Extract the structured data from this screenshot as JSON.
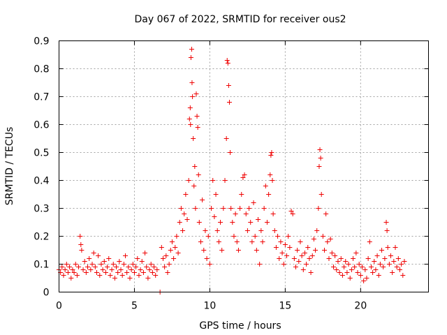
{
  "chart_data": {
    "type": "scatter",
    "title": "Day 067 of 2022, SRMTID for receiver ous2",
    "xlabel": "GPS time / hours",
    "ylabel": "SRMTID / TECUs",
    "xlim": [
      0,
      24.5
    ],
    "ylim": [
      0,
      0.9
    ],
    "xticks": [
      0,
      5,
      10,
      15,
      20
    ],
    "xtick_labels": [
      "0",
      "5",
      "10",
      "15",
      "20"
    ],
    "yticks": [
      0,
      0.1,
      0.2,
      0.3,
      0.4,
      0.5,
      0.6,
      0.7,
      0.8,
      0.9
    ],
    "ytick_labels": [
      "0",
      "0.1",
      "0.2",
      "0.3",
      "0.4",
      "0.5",
      "0.6",
      "0.7",
      "0.8",
      "0.9"
    ],
    "grid": true,
    "marker": "+",
    "color": "#ee0000",
    "series": [
      {
        "name": "ous2",
        "points": [
          [
            0.0,
            0.08
          ],
          [
            0.1,
            0.07
          ],
          [
            0.2,
            0.09
          ],
          [
            0.3,
            0.06
          ],
          [
            0.4,
            0.08
          ],
          [
            0.5,
            0.1
          ],
          [
            0.6,
            0.07
          ],
          [
            0.7,
            0.09
          ],
          [
            0.8,
            0.05
          ],
          [
            0.9,
            0.08
          ],
          [
            1.0,
            0.07
          ],
          [
            1.1,
            0.1
          ],
          [
            1.2,
            0.06
          ],
          [
            1.3,
            0.09
          ],
          [
            1.4,
            0.2
          ],
          [
            1.45,
            0.17
          ],
          [
            1.5,
            0.15
          ],
          [
            1.6,
            0.08
          ],
          [
            1.7,
            0.11
          ],
          [
            1.8,
            0.07
          ],
          [
            1.9,
            0.09
          ],
          [
            2.0,
            0.12
          ],
          [
            2.1,
            0.08
          ],
          [
            2.2,
            0.1
          ],
          [
            2.3,
            0.14
          ],
          [
            2.4,
            0.09
          ],
          [
            2.5,
            0.07
          ],
          [
            2.6,
            0.13
          ],
          [
            2.7,
            0.06
          ],
          [
            2.8,
            0.1
          ],
          [
            2.9,
            0.08
          ],
          [
            3.0,
            0.11
          ],
          [
            3.1,
            0.07
          ],
          [
            3.2,
            0.09
          ],
          [
            3.3,
            0.12
          ],
          [
            3.4,
            0.06
          ],
          [
            3.5,
            0.08
          ],
          [
            3.6,
            0.1
          ],
          [
            3.7,
            0.05
          ],
          [
            3.8,
            0.09
          ],
          [
            3.9,
            0.07
          ],
          [
            4.0,
            0.11
          ],
          [
            4.1,
            0.08
          ],
          [
            4.2,
            0.06
          ],
          [
            4.3,
            0.1
          ],
          [
            4.4,
            0.13
          ],
          [
            4.5,
            0.07
          ],
          [
            4.6,
            0.09
          ],
          [
            4.7,
            0.05
          ],
          [
            4.8,
            0.08
          ],
          [
            4.9,
            0.1
          ],
          [
            5.0,
            0.07
          ],
          [
            5.1,
            0.09
          ],
          [
            5.2,
            0.12
          ],
          [
            5.3,
            0.06
          ],
          [
            5.4,
            0.08
          ],
          [
            5.5,
            0.11
          ],
          [
            5.6,
            0.07
          ],
          [
            5.7,
            0.14
          ],
          [
            5.8,
            0.09
          ],
          [
            5.9,
            0.05
          ],
          [
            6.0,
            0.08
          ],
          [
            6.1,
            0.1
          ],
          [
            6.2,
            0.07
          ],
          [
            6.3,
            0.09
          ],
          [
            6.4,
            0.06
          ],
          [
            6.5,
            0.08
          ],
          [
            6.7,
            0.0
          ],
          [
            6.8,
            0.16
          ],
          [
            6.9,
            0.12
          ],
          [
            7.0,
            0.09
          ],
          [
            7.1,
            0.13
          ],
          [
            7.2,
            0.07
          ],
          [
            7.3,
            0.1
          ],
          [
            7.4,
            0.15
          ],
          [
            7.5,
            0.18
          ],
          [
            7.6,
            0.12
          ],
          [
            7.7,
            0.16
          ],
          [
            7.8,
            0.2
          ],
          [
            7.9,
            0.14
          ],
          [
            8.0,
            0.25
          ],
          [
            8.1,
            0.3
          ],
          [
            8.2,
            0.22
          ],
          [
            8.3,
            0.28
          ],
          [
            8.4,
            0.35
          ],
          [
            8.5,
            0.26
          ],
          [
            8.6,
            0.4
          ],
          [
            8.65,
            0.62
          ],
          [
            8.7,
            0.66
          ],
          [
            8.72,
            0.6
          ],
          [
            8.75,
            0.84
          ],
          [
            8.8,
            0.87
          ],
          [
            8.82,
            0.75
          ],
          [
            8.85,
            0.7
          ],
          [
            8.9,
            0.55
          ],
          [
            8.95,
            0.38
          ],
          [
            9.0,
            0.45
          ],
          [
            9.05,
            0.3
          ],
          [
            9.1,
            0.71
          ],
          [
            9.15,
            0.63
          ],
          [
            9.2,
            0.59
          ],
          [
            9.25,
            0.42
          ],
          [
            9.3,
            0.25
          ],
          [
            9.4,
            0.18
          ],
          [
            9.5,
            0.33
          ],
          [
            9.6,
            0.15
          ],
          [
            9.7,
            0.22
          ],
          [
            9.8,
            0.12
          ],
          [
            9.9,
            0.2
          ],
          [
            10.0,
            0.1
          ],
          [
            10.1,
            0.3
          ],
          [
            10.2,
            0.4
          ],
          [
            10.3,
            0.27
          ],
          [
            10.4,
            0.35
          ],
          [
            10.5,
            0.22
          ],
          [
            10.6,
            0.18
          ],
          [
            10.7,
            0.25
          ],
          [
            10.8,
            0.15
          ],
          [
            10.9,
            0.3
          ],
          [
            11.0,
            0.4
          ],
          [
            11.1,
            0.55
          ],
          [
            11.15,
            0.83
          ],
          [
            11.2,
            0.82
          ],
          [
            11.25,
            0.74
          ],
          [
            11.3,
            0.68
          ],
          [
            11.35,
            0.5
          ],
          [
            11.4,
            0.3
          ],
          [
            11.5,
            0.25
          ],
          [
            11.6,
            0.2
          ],
          [
            11.7,
            0.28
          ],
          [
            11.8,
            0.18
          ],
          [
            11.9,
            0.15
          ],
          [
            12.0,
            0.3
          ],
          [
            12.1,
            0.35
          ],
          [
            12.2,
            0.41
          ],
          [
            12.3,
            0.42
          ],
          [
            12.4,
            0.28
          ],
          [
            12.5,
            0.22
          ],
          [
            12.6,
            0.3
          ],
          [
            12.7,
            0.25
          ],
          [
            12.8,
            0.18
          ],
          [
            12.9,
            0.32
          ],
          [
            13.0,
            0.2
          ],
          [
            13.1,
            0.15
          ],
          [
            13.2,
            0.26
          ],
          [
            13.3,
            0.1
          ],
          [
            13.4,
            0.22
          ],
          [
            13.5,
            0.18
          ],
          [
            13.6,
            0.3
          ],
          [
            13.7,
            0.38
          ],
          [
            13.8,
            0.25
          ],
          [
            13.9,
            0.35
          ],
          [
            14.0,
            0.42
          ],
          [
            14.05,
            0.49
          ],
          [
            14.1,
            0.5
          ],
          [
            14.15,
            0.4
          ],
          [
            14.2,
            0.28
          ],
          [
            14.3,
            0.22
          ],
          [
            14.4,
            0.16
          ],
          [
            14.5,
            0.2
          ],
          [
            14.6,
            0.12
          ],
          [
            14.7,
            0.18
          ],
          [
            14.8,
            0.14
          ],
          [
            14.9,
            0.1
          ],
          [
            15.0,
            0.17
          ],
          [
            15.1,
            0.13
          ],
          [
            15.2,
            0.2
          ],
          [
            15.3,
            0.16
          ],
          [
            15.4,
            0.29
          ],
          [
            15.5,
            0.28
          ],
          [
            15.6,
            0.12
          ],
          [
            15.7,
            0.09
          ],
          [
            15.8,
            0.15
          ],
          [
            15.9,
            0.11
          ],
          [
            16.0,
            0.18
          ],
          [
            16.1,
            0.13
          ],
          [
            16.2,
            0.08
          ],
          [
            16.3,
            0.14
          ],
          [
            16.4,
            0.1
          ],
          [
            16.5,
            0.16
          ],
          [
            16.6,
            0.12
          ],
          [
            16.7,
            0.07
          ],
          [
            16.8,
            0.13
          ],
          [
            16.9,
            0.19
          ],
          [
            17.0,
            0.15
          ],
          [
            17.1,
            0.22
          ],
          [
            17.2,
            0.3
          ],
          [
            17.25,
            0.45
          ],
          [
            17.3,
            0.51
          ],
          [
            17.35,
            0.48
          ],
          [
            17.4,
            0.35
          ],
          [
            17.5,
            0.2
          ],
          [
            17.6,
            0.15
          ],
          [
            17.7,
            0.28
          ],
          [
            17.8,
            0.18
          ],
          [
            17.9,
            0.12
          ],
          [
            18.0,
            0.19
          ],
          [
            18.1,
            0.14
          ],
          [
            18.2,
            0.09
          ],
          [
            18.3,
            0.13
          ],
          [
            18.4,
            0.08
          ],
          [
            18.5,
            0.11
          ],
          [
            18.6,
            0.07
          ],
          [
            18.7,
            0.12
          ],
          [
            18.8,
            0.06
          ],
          [
            18.9,
            0.09
          ],
          [
            19.0,
            0.11
          ],
          [
            19.1,
            0.07
          ],
          [
            19.2,
            0.1
          ],
          [
            19.3,
            0.05
          ],
          [
            19.4,
            0.08
          ],
          [
            19.5,
            0.12
          ],
          [
            19.6,
            0.09
          ],
          [
            19.7,
            0.14
          ],
          [
            19.8,
            0.07
          ],
          [
            19.9,
            0.1
          ],
          [
            20.0,
            0.06
          ],
          [
            20.1,
            0.09
          ],
          [
            20.2,
            0.04
          ],
          [
            20.3,
            0.08
          ],
          [
            20.4,
            0.05
          ],
          [
            20.5,
            0.12
          ],
          [
            20.6,
            0.18
          ],
          [
            20.7,
            0.09
          ],
          [
            20.8,
            0.07
          ],
          [
            20.9,
            0.11
          ],
          [
            21.0,
            0.08
          ],
          [
            21.1,
            0.13
          ],
          [
            21.2,
            0.06
          ],
          [
            21.3,
            0.1
          ],
          [
            21.4,
            0.15
          ],
          [
            21.5,
            0.09
          ],
          [
            21.6,
            0.12
          ],
          [
            21.7,
            0.25
          ],
          [
            21.75,
            0.22
          ],
          [
            21.8,
            0.16
          ],
          [
            21.9,
            0.1
          ],
          [
            22.0,
            0.13
          ],
          [
            22.1,
            0.07
          ],
          [
            22.2,
            0.11
          ],
          [
            22.3,
            0.16
          ],
          [
            22.4,
            0.09
          ],
          [
            22.5,
            0.12
          ],
          [
            22.6,
            0.08
          ],
          [
            22.7,
            0.1
          ],
          [
            22.8,
            0.06
          ],
          [
            22.9,
            0.11
          ]
        ]
      }
    ]
  }
}
